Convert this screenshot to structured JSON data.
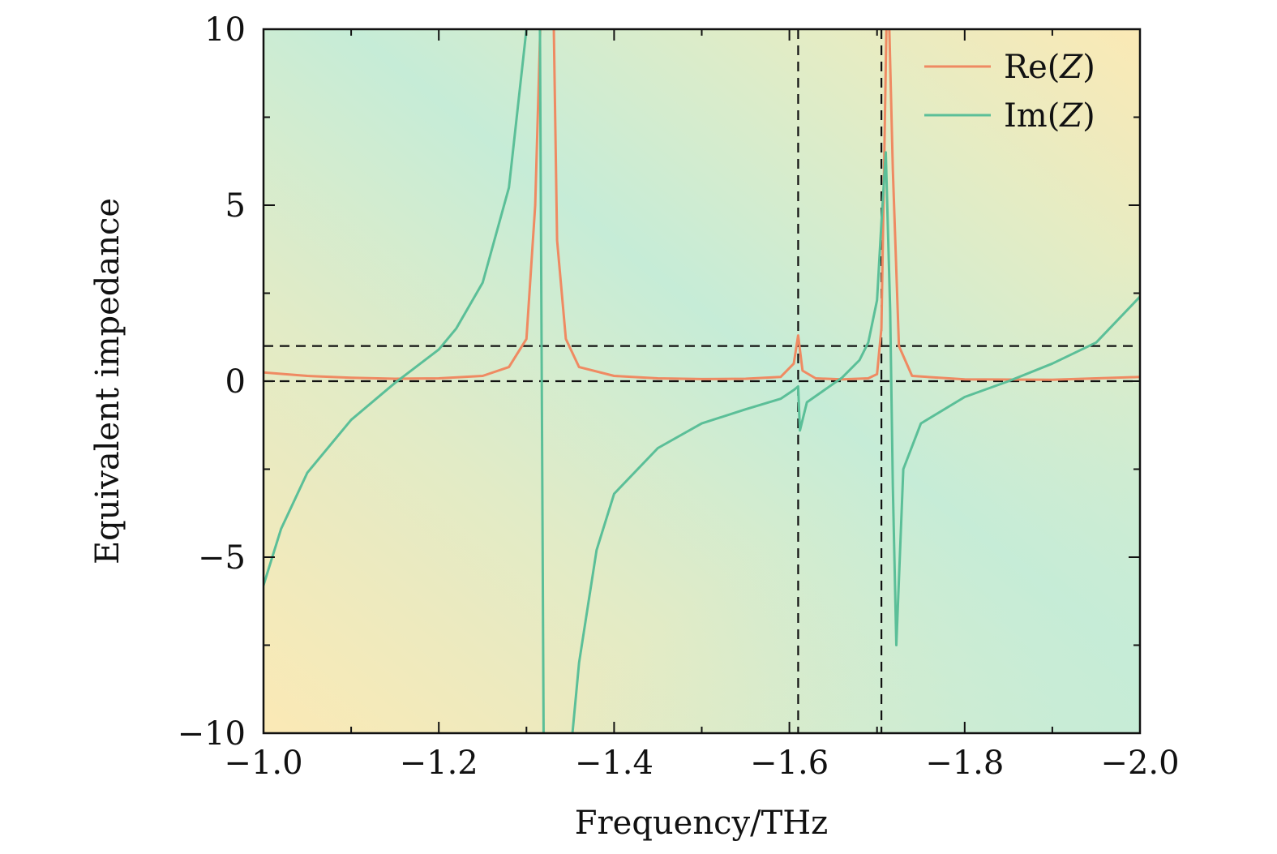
{
  "chart_data": {
    "type": "line",
    "title": "",
    "xlabel": "Frequency/THz",
    "ylabel": "Equivalent impedance",
    "xlim": [
      -1.0,
      -2.0
    ],
    "ylim": [
      -10,
      10
    ],
    "x_ticks": [
      -1.0,
      -1.2,
      -1.4,
      -1.6,
      -1.8,
      -2.0
    ],
    "x_tick_labels": [
      "−1.0",
      "−1.2",
      "−1.4",
      "−1.6",
      "−1.8",
      "−2.0"
    ],
    "x_minor_ticks": [
      -1.1,
      -1.3,
      -1.5,
      -1.7,
      -1.9
    ],
    "y_ticks": [
      -10,
      -5,
      0,
      5,
      10
    ],
    "y_tick_labels": [
      "−10",
      "−5",
      "0",
      "5",
      "10"
    ],
    "y_minor_ticks": [
      -7.5,
      -2.5,
      2.5,
      7.5
    ],
    "grid": false,
    "legend_position": "top-right",
    "background": "gradient yellow-green",
    "reference_lines": {
      "horizontal": [
        0,
        1
      ],
      "vertical": [
        -1.61,
        -1.705
      ]
    },
    "series": [
      {
        "name": "Re(Z)",
        "legend_main": "Re(",
        "legend_var": "Z",
        "legend_close": ")",
        "color": "#ef8a62",
        "x": [
          -1.0,
          -1.05,
          -1.1,
          -1.15,
          -1.2,
          -1.25,
          -1.28,
          -1.3,
          -1.31,
          -1.318,
          -1.322,
          -1.33,
          -1.335,
          -1.345,
          -1.36,
          -1.4,
          -1.45,
          -1.5,
          -1.55,
          -1.59,
          -1.605,
          -1.61,
          -1.615,
          -1.63,
          -1.66,
          -1.69,
          -1.7,
          -1.705,
          -1.712,
          -1.718,
          -1.725,
          -1.74,
          -1.8,
          -1.9,
          -2.0
        ],
        "values": [
          0.25,
          0.15,
          0.1,
          0.07,
          0.08,
          0.15,
          0.4,
          1.2,
          5.0,
          12.0,
          12.0,
          12.0,
          4.0,
          1.2,
          0.4,
          0.15,
          0.08,
          0.06,
          0.07,
          0.12,
          0.5,
          1.3,
          0.3,
          0.08,
          0.05,
          0.08,
          0.2,
          1.5,
          12.0,
          6.0,
          1.0,
          0.15,
          0.05,
          0.04,
          0.12
        ]
      },
      {
        "name": "Im(Z)",
        "legend_main": "Im(",
        "legend_var": "Z",
        "legend_close": ")",
        "color": "#5bbf98",
        "x": [
          -1.0,
          -1.02,
          -1.05,
          -1.1,
          -1.15,
          -1.2,
          -1.22,
          -1.25,
          -1.28,
          -1.3,
          -1.31,
          -1.315,
          -1.32,
          -1.322,
          -1.325,
          -1.345,
          -1.36,
          -1.38,
          -1.4,
          -1.45,
          -1.5,
          -1.55,
          -1.59,
          -1.605,
          -1.61,
          -1.612,
          -1.62,
          -1.64,
          -1.66,
          -1.68,
          -1.69,
          -1.7,
          -1.705,
          -1.71,
          -1.715,
          -1.718,
          -1.722,
          -1.73,
          -1.75,
          -1.8,
          -1.85,
          -1.9,
          -1.95,
          -2.0
        ],
        "values": [
          -5.8,
          -4.2,
          -2.6,
          -1.1,
          -0.05,
          0.9,
          1.5,
          2.8,
          5.5,
          10.0,
          12.0,
          12.0,
          -12.0,
          -12.0,
          -12.0,
          -12.0,
          -8.0,
          -4.8,
          -3.2,
          -1.9,
          -1.2,
          -0.8,
          -0.5,
          -0.25,
          -0.15,
          -1.4,
          -0.6,
          -0.25,
          0.1,
          0.6,
          1.1,
          2.3,
          4.5,
          6.5,
          2.0,
          -3.0,
          -7.5,
          -2.5,
          -1.2,
          -0.45,
          0.0,
          0.5,
          1.1,
          2.4
        ]
      }
    ]
  }
}
